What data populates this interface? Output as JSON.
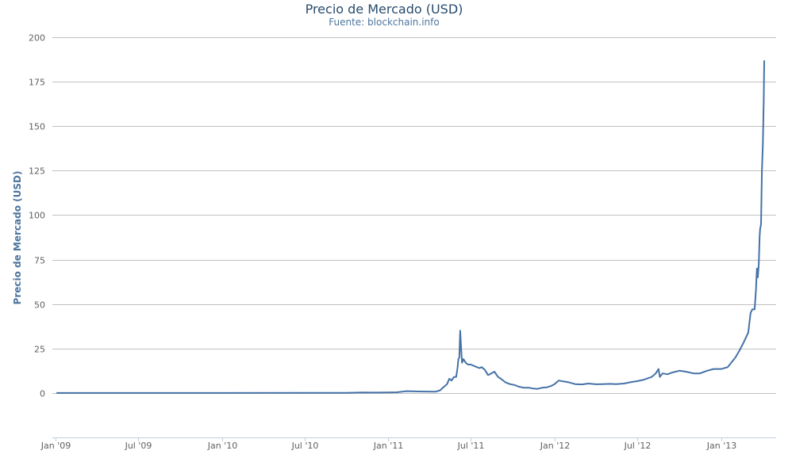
{
  "chart_data": {
    "type": "line",
    "title": "Precio de Mercado (USD)",
    "subtitle": "Fuente: blockchain.info",
    "ylabel": "Precio de Mercado (USD)",
    "xlabel": "",
    "ylim": [
      -25,
      200
    ],
    "yticks": [
      0,
      25,
      50,
      75,
      100,
      125,
      150,
      175,
      200
    ],
    "xlim": [
      "2009-01-03",
      "2013-04-05"
    ],
    "xticks": [
      {
        "date": "2009-01-01",
        "label": "Jan '09"
      },
      {
        "date": "2009-07-01",
        "label": "Jul '09"
      },
      {
        "date": "2010-01-01",
        "label": "Jan '10"
      },
      {
        "date": "2010-07-01",
        "label": "Jul '10"
      },
      {
        "date": "2011-01-01",
        "label": "Jan '11"
      },
      {
        "date": "2011-07-01",
        "label": "Jul '11"
      },
      {
        "date": "2012-01-01",
        "label": "Jan '12"
      },
      {
        "date": "2012-07-01",
        "label": "Jul '12"
      },
      {
        "date": "2013-01-01",
        "label": "Jan '13"
      }
    ],
    "grid": true,
    "legend": false,
    "series": [
      {
        "color": "#4572a7",
        "points": [
          [
            "2009-01-03",
            0
          ],
          [
            "2009-07-01",
            0
          ],
          [
            "2010-01-01",
            0
          ],
          [
            "2010-07-01",
            0.05
          ],
          [
            "2010-08-15",
            0.07
          ],
          [
            "2010-10-01",
            0.1
          ],
          [
            "2010-11-06",
            0.3
          ],
          [
            "2010-12-01",
            0.2
          ],
          [
            "2011-01-01",
            0.3
          ],
          [
            "2011-01-20",
            0.4
          ],
          [
            "2011-02-10",
            1.0
          ],
          [
            "2011-03-01",
            0.9
          ],
          [
            "2011-03-20",
            0.8
          ],
          [
            "2011-04-15",
            0.7
          ],
          [
            "2011-04-25",
            1.5
          ],
          [
            "2011-05-01",
            3.0
          ],
          [
            "2011-05-10",
            5.0
          ],
          [
            "2011-05-15",
            8.0
          ],
          [
            "2011-05-20",
            7.0
          ],
          [
            "2011-05-25",
            9.0
          ],
          [
            "2011-05-30",
            9.0
          ],
          [
            "2011-06-02",
            14.0
          ],
          [
            "2011-06-04",
            19.0
          ],
          [
            "2011-06-06",
            20.0
          ],
          [
            "2011-06-08",
            35.0
          ],
          [
            "2011-06-10",
            25.0
          ],
          [
            "2011-06-12",
            17.0
          ],
          [
            "2011-06-15",
            19.0
          ],
          [
            "2011-06-20",
            17.0
          ],
          [
            "2011-06-25",
            16.0
          ],
          [
            "2011-07-01",
            16.0
          ],
          [
            "2011-07-10",
            15.0
          ],
          [
            "2011-07-20",
            14.0
          ],
          [
            "2011-07-25",
            14.5
          ],
          [
            "2011-08-01",
            13.0
          ],
          [
            "2011-08-08",
            10.0
          ],
          [
            "2011-08-15",
            11.0
          ],
          [
            "2011-08-22",
            12.0
          ],
          [
            "2011-08-30",
            9.0
          ],
          [
            "2011-09-05",
            8.0
          ],
          [
            "2011-09-15",
            6.0
          ],
          [
            "2011-09-25",
            5.0
          ],
          [
            "2011-10-05",
            4.5
          ],
          [
            "2011-10-15",
            3.5
          ],
          [
            "2011-10-25",
            3.0
          ],
          [
            "2011-11-05",
            3.0
          ],
          [
            "2011-11-15",
            2.5
          ],
          [
            "2011-11-25",
            2.3
          ],
          [
            "2011-12-05",
            3.0
          ],
          [
            "2011-12-15",
            3.2
          ],
          [
            "2011-12-25",
            4.0
          ],
          [
            "2012-01-01",
            5.0
          ],
          [
            "2012-01-10",
            7.0
          ],
          [
            "2012-01-20",
            6.5
          ],
          [
            "2012-02-01",
            6.0
          ],
          [
            "2012-02-15",
            5.0
          ],
          [
            "2012-03-01",
            4.8
          ],
          [
            "2012-03-15",
            5.3
          ],
          [
            "2012-04-01",
            4.9
          ],
          [
            "2012-04-15",
            5.0
          ],
          [
            "2012-05-01",
            5.1
          ],
          [
            "2012-05-15",
            5.0
          ],
          [
            "2012-06-01",
            5.3
          ],
          [
            "2012-06-15",
            6.0
          ],
          [
            "2012-07-01",
            6.7
          ],
          [
            "2012-07-15",
            7.5
          ],
          [
            "2012-08-01",
            9.0
          ],
          [
            "2012-08-10",
            11.0
          ],
          [
            "2012-08-16",
            13.5
          ],
          [
            "2012-08-19",
            9.0
          ],
          [
            "2012-08-25",
            11.0
          ],
          [
            "2012-09-05",
            10.5
          ],
          [
            "2012-09-15",
            11.5
          ],
          [
            "2012-10-01",
            12.5
          ],
          [
            "2012-10-15",
            12.0
          ],
          [
            "2012-11-01",
            11.0
          ],
          [
            "2012-11-15",
            11.0
          ],
          [
            "2012-12-01",
            12.5
          ],
          [
            "2012-12-15",
            13.5
          ],
          [
            "2013-01-01",
            13.5
          ],
          [
            "2013-01-15",
            14.5
          ],
          [
            "2013-02-01",
            20.0
          ],
          [
            "2013-02-10",
            24.0
          ],
          [
            "2013-02-20",
            29.0
          ],
          [
            "2013-03-01",
            34.0
          ],
          [
            "2013-03-06",
            45.0
          ],
          [
            "2013-03-10",
            47.0
          ],
          [
            "2013-03-15",
            47.0
          ],
          [
            "2013-03-18",
            58.0
          ],
          [
            "2013-03-20",
            70.0
          ],
          [
            "2013-03-22",
            65.0
          ],
          [
            "2013-03-24",
            72.0
          ],
          [
            "2013-03-26",
            88.0
          ],
          [
            "2013-03-27",
            92.0
          ],
          [
            "2013-03-29",
            95.0
          ],
          [
            "2013-03-31",
            125.0
          ],
          [
            "2013-04-02",
            140.0
          ],
          [
            "2013-04-04",
            165.0
          ],
          [
            "2013-04-05",
            187.0
          ]
        ]
      }
    ]
  }
}
